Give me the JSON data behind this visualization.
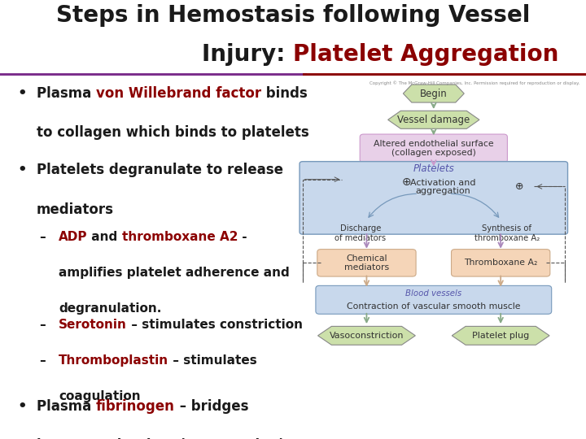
{
  "title_line1": "Steps in Hemostasis following Vessel",
  "title_line2_black": "Injury: ",
  "title_line2_red": "Platelet Aggregation",
  "title_fontsize": 20,
  "title_color_black": "#1a1a1a",
  "title_color_red": "#8B0000",
  "bg_color": "#ffffff",
  "separator_color_left": "#7B2D8B",
  "separator_color_right": "#8B0000",
  "text_fontsize": 12,
  "sub_fontsize": 11,
  "red_color": "#8B0000",
  "black_color": "#1a1a1a",
  "node_begin_color": "#cce0aa",
  "node_vessel_color": "#cce0aa",
  "node_altered_color": "#e8d0e8",
  "node_platelet_color": "#c8d8ec",
  "node_blood_color": "#c8d8ec",
  "node_chemical_color": "#f5d5b8",
  "node_thromboxane_color": "#f5d5b8",
  "node_vaso_color": "#cce0aa",
  "node_plug_color": "#cce0aa"
}
